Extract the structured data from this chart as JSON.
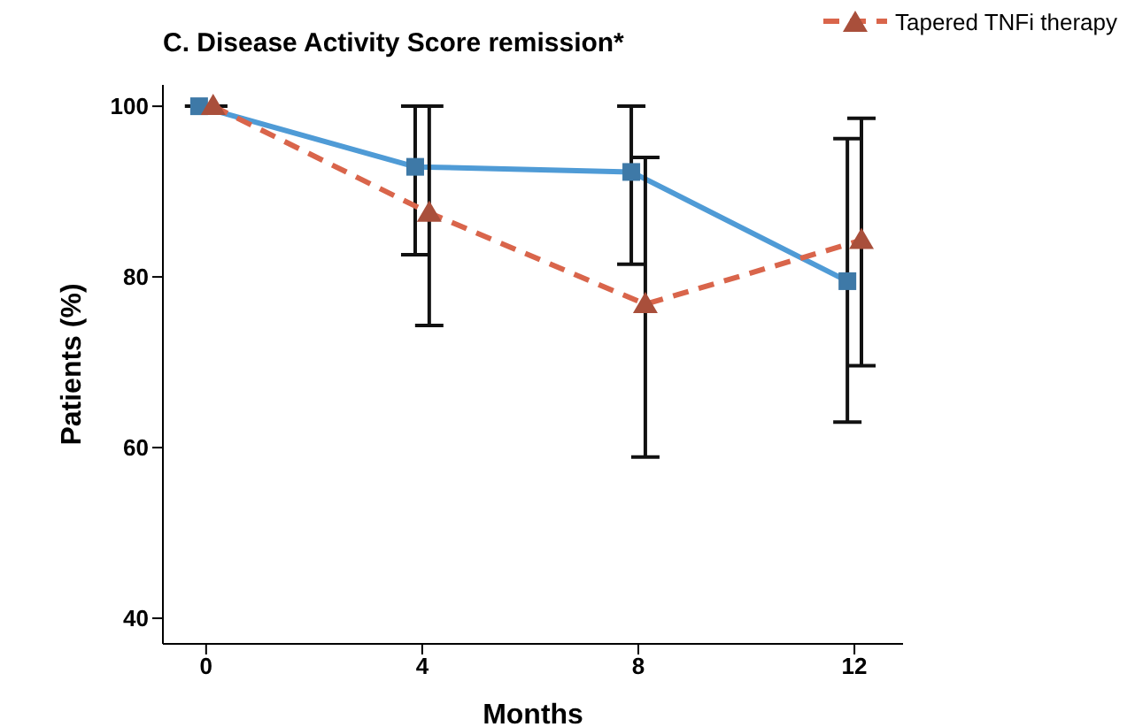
{
  "chart_data": {
    "type": "line",
    "title": "C. Disease Activity Score remission*",
    "xlabel": "Months",
    "ylabel": "Patients (%)",
    "xlim": [
      -0.8,
      12.9
    ],
    "xticks": [
      0,
      4,
      8,
      12
    ],
    "ylim": [
      37,
      102.5
    ],
    "yticks": [
      40,
      60,
      80,
      100
    ],
    "grid": false,
    "legend": "top right",
    "series": [
      {
        "color": "#4f9bd6",
        "marker": "square",
        "line_style": "solid",
        "x": [
          -0.13,
          3.87,
          7.87,
          11.87
        ],
        "values": [
          100,
          92.9,
          92.3,
          79.5
        ],
        "errors": [
          null,
          [
            82.6,
            100
          ],
          [
            81.5,
            100
          ],
          [
            63.0,
            96.2
          ]
        ]
      },
      {
        "name": "Tapered TNFi therapy",
        "color": "#d9654b",
        "marker": "triangle",
        "line_style": "dashed",
        "x": [
          0.13,
          4.13,
          8.13,
          12.13
        ],
        "values": [
          100,
          87.5,
          76.8,
          84.3
        ],
        "errors": [
          null,
          [
            74.3,
            100
          ],
          [
            58.9,
            94.0
          ],
          [
            69.6,
            98.6
          ]
        ]
      }
    ]
  }
}
